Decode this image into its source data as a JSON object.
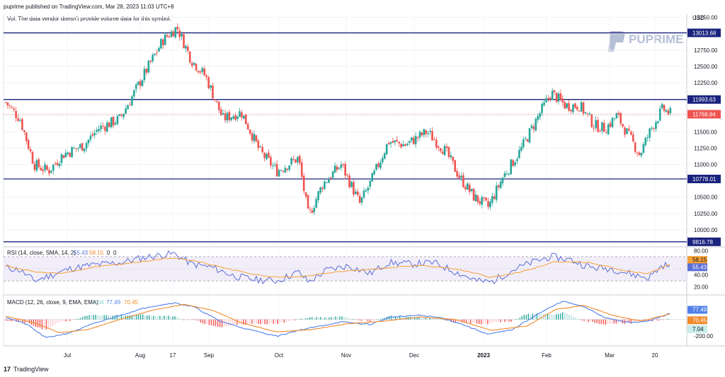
{
  "header": {
    "publisher": "puprime published on TradingView.com, Mar 28, 2023 11:03 UTC+8",
    "vol_note": "Vol: The data vendor doesn't provide volume data for this symbol.",
    "currency": "USD",
    "brand": "PUPRIME",
    "footer": "TradingView"
  },
  "colors": {
    "up": "#26a69a",
    "down": "#ef5350",
    "level_line": "#1a237e",
    "rsi_line": "#5b6fd6",
    "rsi_ma": "#f7a035",
    "rsi_band": "#ede7f6",
    "macd_line": "#4f7fe8",
    "signal_line": "#f28a2b",
    "last_price": "#ef5350"
  },
  "chart_data": [
    {
      "type": "candlestick",
      "symbol_note": "price pane",
      "y_ticks": [
        "13250.00",
        "13000.00",
        "12750.00",
        "12500.00",
        "12250.00",
        "12000.00",
        "11750.00",
        "11500.00",
        "11250.00",
        "11000.00",
        "10750.00",
        "10500.00",
        "10250.00",
        "10000.00"
      ],
      "x_ticks": [
        "Jul",
        "Aug",
        "17",
        "Sep",
        "Oct",
        "Nov",
        "Dec",
        "2023",
        "Feb",
        "Mar",
        "20"
      ],
      "ylim": [
        9750,
        13300
      ],
      "horizontal_levels": [
        {
          "value": 13013.68,
          "label": "13013.68"
        },
        {
          "value": 11993.63,
          "label": "11993.63"
        },
        {
          "value": 10778.01,
          "label": "10778.01"
        },
        {
          "value": 9816.78,
          "label": "9816.78"
        }
      ],
      "last_price": {
        "value": 11768.84,
        "label": "11768.84"
      },
      "close_path": [
        {
          "day": 0,
          "close": 11950
        },
        {
          "day": 10,
          "close": 11700
        },
        {
          "day": 20,
          "close": 11000
        },
        {
          "day": 30,
          "close": 10900
        },
        {
          "day": 40,
          "close": 11150
        },
        {
          "day": 55,
          "close": 11300
        },
        {
          "day": 65,
          "close": 11550
        },
        {
          "day": 80,
          "close": 11700
        },
        {
          "day": 95,
          "close": 12300
        },
        {
          "day": 110,
          "close": 12900
        },
        {
          "day": 120,
          "close": 13100
        },
        {
          "day": 130,
          "close": 12600
        },
        {
          "day": 140,
          "close": 12350
        },
        {
          "day": 152,
          "close": 11700
        },
        {
          "day": 165,
          "close": 11800
        },
        {
          "day": 178,
          "close": 11200
        },
        {
          "day": 190,
          "close": 10900
        },
        {
          "day": 205,
          "close": 11100
        },
        {
          "day": 212,
          "close": 10200
        },
        {
          "day": 222,
          "close": 10700
        },
        {
          "day": 235,
          "close": 11000
        },
        {
          "day": 248,
          "close": 10400
        },
        {
          "day": 255,
          "close": 10700
        },
        {
          "day": 268,
          "close": 11350
        },
        {
          "day": 280,
          "close": 11300
        },
        {
          "day": 295,
          "close": 11500
        },
        {
          "day": 308,
          "close": 11200
        },
        {
          "day": 318,
          "close": 10800
        },
        {
          "day": 328,
          "close": 10500
        },
        {
          "day": 338,
          "close": 10350
        },
        {
          "day": 348,
          "close": 10800
        },
        {
          "day": 360,
          "close": 11200
        },
        {
          "day": 372,
          "close": 11700
        },
        {
          "day": 382,
          "close": 12100
        },
        {
          "day": 392,
          "close": 11900
        },
        {
          "day": 402,
          "close": 11900
        },
        {
          "day": 412,
          "close": 11600
        },
        {
          "day": 420,
          "close": 11550
        },
        {
          "day": 428,
          "close": 11750
        },
        {
          "day": 436,
          "close": 11450
        },
        {
          "day": 444,
          "close": 11150
        },
        {
          "day": 452,
          "close": 11550
        },
        {
          "day": 460,
          "close": 11850
        },
        {
          "day": 466,
          "close": 11768.84
        }
      ]
    },
    {
      "type": "line",
      "title": "RSI (14, close, SMA, 14, 2)",
      "legend_values": [
        "55.43",
        "58.15",
        "0",
        "0"
      ],
      "y_ticks": [
        "80.00",
        "40.00",
        "20.00"
      ],
      "ylim": [
        15,
        85
      ],
      "bands": [
        30,
        70
      ],
      "series": [
        {
          "name": "RSI",
          "last": 55.43,
          "label": "55.43",
          "path": [
            {
              "day": 0,
              "v": 52
            },
            {
              "day": 10,
              "v": 48
            },
            {
              "day": 20,
              "v": 30
            },
            {
              "day": 30,
              "v": 38
            },
            {
              "day": 45,
              "v": 50
            },
            {
              "day": 60,
              "v": 56
            },
            {
              "day": 80,
              "v": 60
            },
            {
              "day": 100,
              "v": 70
            },
            {
              "day": 118,
              "v": 75
            },
            {
              "day": 130,
              "v": 58
            },
            {
              "day": 145,
              "v": 52
            },
            {
              "day": 160,
              "v": 38
            },
            {
              "day": 175,
              "v": 32
            },
            {
              "day": 190,
              "v": 30
            },
            {
              "day": 205,
              "v": 45
            },
            {
              "day": 212,
              "v": 28
            },
            {
              "day": 225,
              "v": 48
            },
            {
              "day": 240,
              "v": 55
            },
            {
              "day": 255,
              "v": 42
            },
            {
              "day": 268,
              "v": 60
            },
            {
              "day": 285,
              "v": 58
            },
            {
              "day": 300,
              "v": 60
            },
            {
              "day": 315,
              "v": 45
            },
            {
              "day": 330,
              "v": 30
            },
            {
              "day": 340,
              "v": 28
            },
            {
              "day": 355,
              "v": 48
            },
            {
              "day": 370,
              "v": 62
            },
            {
              "day": 382,
              "v": 70
            },
            {
              "day": 395,
              "v": 65
            },
            {
              "day": 410,
              "v": 52
            },
            {
              "day": 425,
              "v": 50
            },
            {
              "day": 440,
              "v": 40
            },
            {
              "day": 450,
              "v": 35
            },
            {
              "day": 460,
              "v": 56
            },
            {
              "day": 466,
              "v": 55.43
            }
          ]
        },
        {
          "name": "RSI-based MA",
          "last": 58.15,
          "label": "58.15",
          "path": [
            {
              "day": 0,
              "v": 55
            },
            {
              "day": 20,
              "v": 45
            },
            {
              "day": 40,
              "v": 42
            },
            {
              "day": 60,
              "v": 52
            },
            {
              "day": 90,
              "v": 60
            },
            {
              "day": 115,
              "v": 68
            },
            {
              "day": 135,
              "v": 62
            },
            {
              "day": 160,
              "v": 48
            },
            {
              "day": 185,
              "v": 36
            },
            {
              "day": 210,
              "v": 38
            },
            {
              "day": 235,
              "v": 46
            },
            {
              "day": 260,
              "v": 50
            },
            {
              "day": 290,
              "v": 56
            },
            {
              "day": 315,
              "v": 50
            },
            {
              "day": 340,
              "v": 36
            },
            {
              "day": 360,
              "v": 44
            },
            {
              "day": 385,
              "v": 62
            },
            {
              "day": 410,
              "v": 60
            },
            {
              "day": 435,
              "v": 46
            },
            {
              "day": 450,
              "v": 42
            },
            {
              "day": 466,
              "v": 58.15
            }
          ]
        }
      ]
    },
    {
      "type": "line",
      "title": "MACD (12, 26, close, 9, EMA, EMA)",
      "legend_values": [
        "7.04",
        "77.49",
        "70.45"
      ],
      "y_ticks": [
        "-200.00"
      ],
      "ylim": [
        -300,
        260
      ],
      "series": [
        {
          "name": "MACD",
          "last": 77.49,
          "label": "77.49",
          "path": [
            {
              "day": 0,
              "v": 30
            },
            {
              "day": 15,
              "v": -60
            },
            {
              "day": 28,
              "v": -220
            },
            {
              "day": 45,
              "v": -160
            },
            {
              "day": 60,
              "v": -60
            },
            {
              "day": 80,
              "v": 50
            },
            {
              "day": 100,
              "v": 150
            },
            {
              "day": 118,
              "v": 200
            },
            {
              "day": 132,
              "v": 150
            },
            {
              "day": 150,
              "v": -20
            },
            {
              "day": 170,
              "v": -120
            },
            {
              "day": 190,
              "v": -200
            },
            {
              "day": 205,
              "v": -130
            },
            {
              "day": 220,
              "v": -80
            },
            {
              "day": 235,
              "v": -30
            },
            {
              "day": 255,
              "v": -60
            },
            {
              "day": 270,
              "v": 30
            },
            {
              "day": 290,
              "v": 50
            },
            {
              "day": 305,
              "v": 20
            },
            {
              "day": 320,
              "v": -60
            },
            {
              "day": 338,
              "v": -180
            },
            {
              "day": 355,
              "v": -120
            },
            {
              "day": 372,
              "v": 60
            },
            {
              "day": 390,
              "v": 220
            },
            {
              "day": 405,
              "v": 150
            },
            {
              "day": 420,
              "v": 20
            },
            {
              "day": 438,
              "v": -40
            },
            {
              "day": 450,
              "v": -20
            },
            {
              "day": 466,
              "v": 77.49
            }
          ]
        },
        {
          "name": "Signal",
          "last": 70.45,
          "label": "70.45",
          "path": [
            {
              "day": 0,
              "v": 40
            },
            {
              "day": 20,
              "v": -40
            },
            {
              "day": 38,
              "v": -160
            },
            {
              "day": 58,
              "v": -120
            },
            {
              "day": 80,
              "v": 0
            },
            {
              "day": 105,
              "v": 120
            },
            {
              "day": 125,
              "v": 180
            },
            {
              "day": 145,
              "v": 110
            },
            {
              "day": 165,
              "v": -40
            },
            {
              "day": 190,
              "v": -150
            },
            {
              "day": 215,
              "v": -120
            },
            {
              "day": 240,
              "v": -50
            },
            {
              "day": 265,
              "v": -20
            },
            {
              "day": 290,
              "v": 30
            },
            {
              "day": 315,
              "v": 0
            },
            {
              "day": 340,
              "v": -130
            },
            {
              "day": 365,
              "v": -80
            },
            {
              "day": 385,
              "v": 120
            },
            {
              "day": 405,
              "v": 170
            },
            {
              "day": 425,
              "v": 50
            },
            {
              "day": 445,
              "v": -20
            },
            {
              "day": 466,
              "v": 70.45
            }
          ]
        }
      ],
      "histogram_last": {
        "value": 7.04,
        "label": "7.04"
      }
    }
  ]
}
